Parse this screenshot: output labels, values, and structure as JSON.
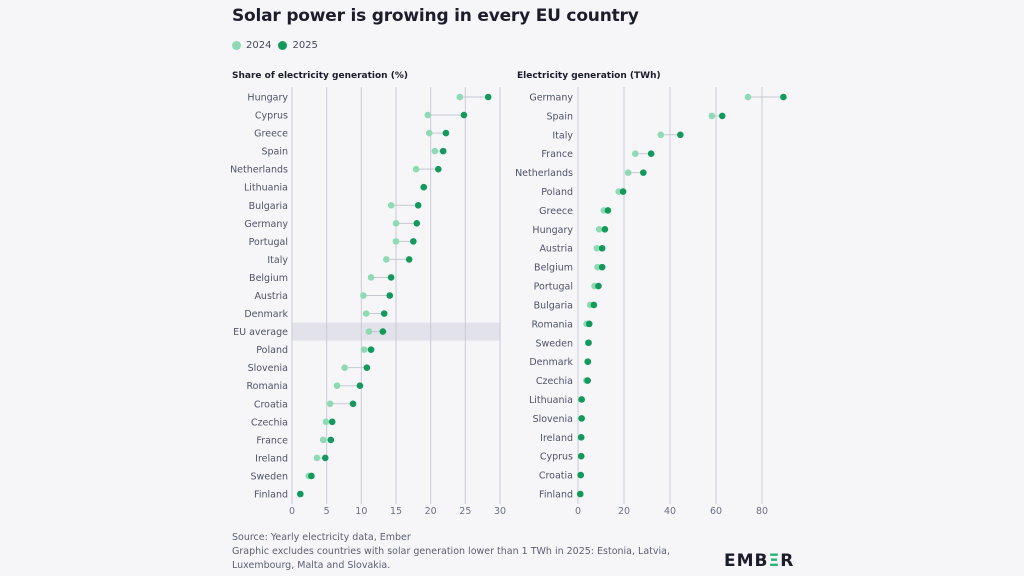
{
  "title": "Solar power is growing in every EU country",
  "legend": [
    {
      "label": "2024",
      "color": "#8edbb3"
    },
    {
      "label": "2025",
      "color": "#13995c"
    }
  ],
  "colors": {
    "y2024": "#8edbb3",
    "y2025": "#13995c",
    "grid": "#c9cad6",
    "highlight": "#e2e3ea",
    "connector": "#c6c8d2"
  },
  "chart_data": [
    {
      "type": "dumbbell",
      "title": "Share of electricity generation (%)",
      "xlim": [
        0,
        30
      ],
      "xticks": [
        0,
        5,
        10,
        15,
        20,
        25,
        30
      ],
      "grid": true,
      "highlight": "EU average",
      "categories": [
        "Hungary",
        "Cyprus",
        "Greece",
        "Spain",
        "Netherlands",
        "Lithuania",
        "Bulgaria",
        "Germany",
        "Portugal",
        "Italy",
        "Belgium",
        "Austria",
        "Denmark",
        "EU average",
        "Poland",
        "Slovenia",
        "Romania",
        "Croatia",
        "Czechia",
        "France",
        "Ireland",
        "Sweden",
        "Finland"
      ],
      "series": [
        {
          "name": "2024",
          "values": [
            24.2,
            19.6,
            19.8,
            20.6,
            17.9,
            19.0,
            14.3,
            15.0,
            15.0,
            13.6,
            11.4,
            10.3,
            10.7,
            11.1,
            10.4,
            7.6,
            6.5,
            5.5,
            4.9,
            4.5,
            3.6,
            2.4,
            1.2
          ]
        },
        {
          "name": "2025",
          "values": [
            28.3,
            24.8,
            22.2,
            21.8,
            21.1,
            19.0,
            18.2,
            18.0,
            17.5,
            16.9,
            14.3,
            14.1,
            13.3,
            13.1,
            11.4,
            10.8,
            9.8,
            8.8,
            5.8,
            5.6,
            4.8,
            2.8,
            1.2
          ]
        }
      ]
    },
    {
      "type": "dumbbell",
      "title": "Electricity generation (TWh)",
      "xlim": [
        0,
        90
      ],
      "xticks": [
        0,
        20,
        40,
        60,
        80
      ],
      "grid": true,
      "categories": [
        "Germany",
        "Spain",
        "Italy",
        "France",
        "Netherlands",
        "Poland",
        "Greece",
        "Hungary",
        "Austria",
        "Belgium",
        "Portugal",
        "Bulgaria",
        "Romania",
        "Sweden",
        "Denmark",
        "Czechia",
        "Lithuania",
        "Slovenia",
        "Ireland",
        "Cyprus",
        "Croatia",
        "Finland"
      ],
      "series": [
        {
          "name": "2024",
          "values": [
            73.9,
            58.2,
            36.0,
            24.9,
            21.8,
            17.7,
            11.2,
            9.2,
            8.2,
            8.5,
            7.2,
            5.3,
            3.7,
            4.4,
            4.1,
            3.6,
            1.5,
            1.5,
            1.3,
            1.3,
            1.1,
            0.9
          ]
        },
        {
          "name": "2025",
          "values": [
            89.3,
            62.7,
            44.5,
            31.8,
            28.4,
            19.6,
            13.0,
            11.7,
            10.5,
            10.5,
            8.9,
            6.9,
            4.9,
            4.6,
            4.3,
            4.2,
            1.6,
            1.6,
            1.4,
            1.4,
            1.2,
            1.0
          ]
        }
      ]
    }
  ],
  "footer": {
    "source": "Source: Yearly electricity data, Ember",
    "note_line1": "Graphic excludes countries with solar generation lower than 1 TWh in 2025: Estonia, Latvia,",
    "note_line2": "Luxembourg, Malta and Slovakia.",
    "logo": "EMBER"
  }
}
